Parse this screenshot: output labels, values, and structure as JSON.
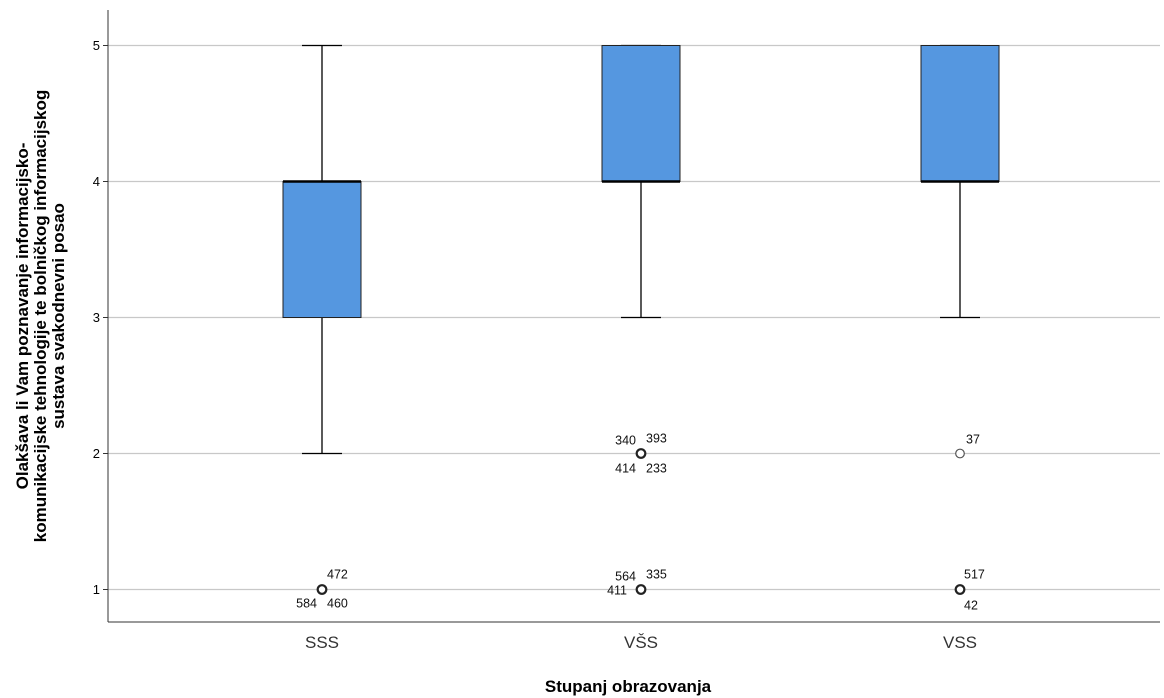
{
  "chart_data": {
    "type": "boxplot",
    "xlabel": "Stupanj obrazovanja",
    "ylabel_lines": [
      "Olakšava li Vam poznavanje informacijsko-",
      "komunikacijske tehnologije te bolničkog informacijskog",
      "sustava svakodnevni posao"
    ],
    "ylim": [
      0.8,
      5.2
    ],
    "yticks": [
      "1",
      "2",
      "3",
      "4",
      "5"
    ],
    "grid": true,
    "box_color": "#5597e0",
    "categories": [
      "SSS",
      "VŠS",
      "VSS"
    ],
    "boxes": [
      {
        "category": "SSS",
        "whisker_low": 2,
        "q1": 3,
        "median": 4,
        "q3": 4,
        "whisker_high": 5,
        "outliers": [
          {
            "value": 1,
            "labels": [
              "472",
              "584",
              "460"
            ]
          }
        ]
      },
      {
        "category": "VŠS",
        "whisker_low": 3,
        "q1": 4,
        "median": 4,
        "q3": 5,
        "whisker_high": 5,
        "outliers": [
          {
            "value": 2,
            "labels": [
              "340",
              "393",
              "414",
              "233"
            ]
          },
          {
            "value": 1,
            "labels": [
              "564",
              "335",
              "411"
            ]
          }
        ]
      },
      {
        "category": "VSS",
        "whisker_low": 3,
        "q1": 4,
        "median": 4,
        "q3": 5,
        "whisker_high": 5,
        "outliers": [
          {
            "value": 2,
            "labels": [
              "37"
            ]
          },
          {
            "value": 1,
            "labels": [
              "517",
              "42"
            ]
          }
        ]
      }
    ]
  }
}
